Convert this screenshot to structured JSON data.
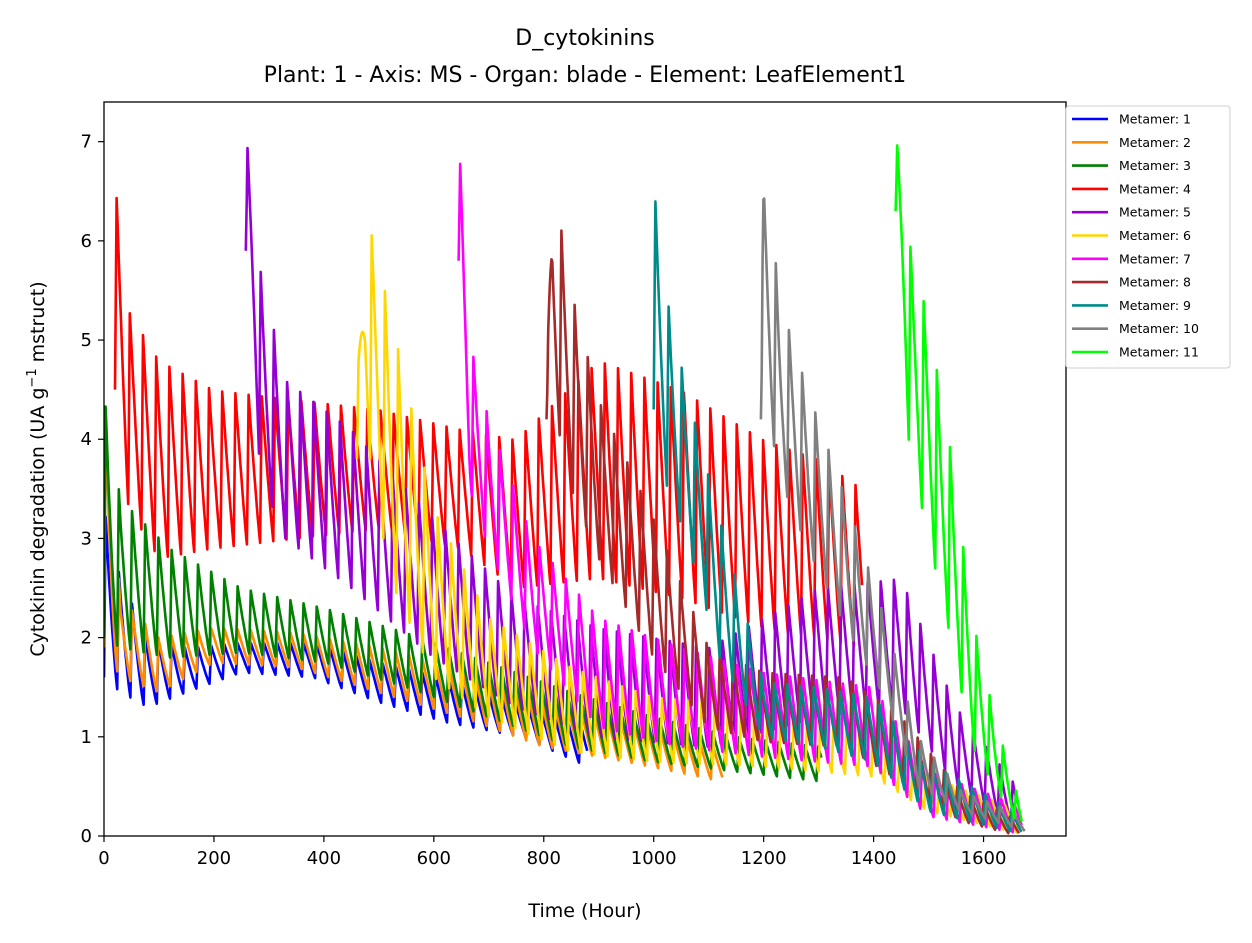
{
  "chart_data": {
    "type": "line",
    "title": "D_cytokinins",
    "subtitle": "Plant: 1 - Axis: MS - Organ: blade - Element: LeafElement1",
    "xlabel": "Time (Hour)",
    "ylabel_prefix": "Cytokinin degradation (UA g",
    "ylabel_superscript": "−1",
    "ylabel_suffix": " mstruct)",
    "xlim": [
      0,
      1750
    ],
    "ylim": [
      0,
      7.4
    ],
    "x_ticks": [
      0,
      200,
      400,
      600,
      800,
      1000,
      1200,
      1400,
      1600
    ],
    "y_ticks": [
      0,
      1,
      2,
      3,
      4,
      5,
      6,
      7
    ],
    "grid": false,
    "legend_position": "outside-top-right",
    "series": [
      {
        "name": "Metamer: 1",
        "color": "#0000ff",
        "start": 0,
        "end": 880,
        "envelope": [
          [
            0,
            3.3,
            1.6
          ],
          [
            30,
            2.6,
            1.45
          ],
          [
            80,
            2.0,
            1.3
          ],
          [
            150,
            1.9,
            1.45
          ],
          [
            250,
            1.95,
            1.65
          ],
          [
            380,
            1.95,
            1.6
          ],
          [
            500,
            1.75,
            1.35
          ],
          [
            620,
            1.6,
            1.15
          ],
          [
            760,
            1.35,
            1.0
          ],
          [
            880,
            1.1,
            0.7
          ]
        ]
      },
      {
        "name": "Metamer: 2",
        "color": "#ff8c00",
        "start": 0,
        "end": 1125,
        "envelope": [
          [
            0,
            4.4,
            1.9
          ],
          [
            30,
            2.4,
            1.6
          ],
          [
            100,
            2.0,
            1.45
          ],
          [
            200,
            2.1,
            1.75
          ],
          [
            350,
            2.05,
            1.7
          ],
          [
            500,
            1.9,
            1.45
          ],
          [
            650,
            1.7,
            1.2
          ],
          [
            800,
            1.4,
            0.9
          ],
          [
            950,
            1.2,
            0.75
          ],
          [
            1125,
            0.9,
            0.55
          ]
        ]
      },
      {
        "name": "Metamer: 3",
        "color": "#008000",
        "start": 0,
        "end": 1305,
        "envelope": [
          [
            0,
            4.45,
            2.0
          ],
          [
            30,
            3.4,
            1.9
          ],
          [
            120,
            2.9,
            1.8
          ],
          [
            250,
            2.5,
            1.85
          ],
          [
            400,
            2.3,
            1.75
          ],
          [
            550,
            2.05,
            1.5
          ],
          [
            700,
            1.75,
            1.2
          ],
          [
            850,
            1.45,
            0.9
          ],
          [
            1000,
            1.2,
            0.75
          ],
          [
            1150,
            1.0,
            0.65
          ],
          [
            1305,
            0.9,
            0.55
          ]
        ]
      },
      {
        "name": "Metamer: 4",
        "color": "#ff0000",
        "start": 20,
        "end": 1380,
        "envelope": [
          [
            20,
            6.6,
            4.5
          ],
          [
            45,
            5.3,
            3.3
          ],
          [
            100,
            4.8,
            2.8
          ],
          [
            200,
            4.5,
            2.9
          ],
          [
            350,
            4.4,
            3.0
          ],
          [
            500,
            4.3,
            3.1
          ],
          [
            650,
            4.1,
            2.9
          ],
          [
            750,
            4.0,
            2.5
          ],
          [
            900,
            4.8,
            2.6
          ],
          [
            1050,
            4.5,
            2.4
          ],
          [
            1200,
            4.0,
            2.1
          ],
          [
            1300,
            3.8,
            2.0
          ],
          [
            1380,
            3.5,
            1.9
          ]
        ]
      },
      {
        "name": "Metamer: 5",
        "color": "#9400d3",
        "start": 258,
        "end": 1660,
        "envelope": [
          [
            258,
            7.1,
            5.9
          ],
          [
            285,
            5.7,
            3.6
          ],
          [
            330,
            4.6,
            3.0
          ],
          [
            450,
            4.1,
            2.5
          ],
          [
            600,
            3.2,
            1.8
          ],
          [
            750,
            2.4,
            1.3
          ],
          [
            900,
            2.1,
            1.0
          ],
          [
            1100,
            1.9,
            0.9
          ],
          [
            1300,
            2.5,
            1.2
          ],
          [
            1450,
            2.6,
            1.3
          ],
          [
            1550,
            1.3,
            0.5
          ],
          [
            1660,
            0.5,
            0.1
          ]
        ]
      },
      {
        "name": "Metamer: 6",
        "color": "#ffd700",
        "start": 460,
        "end": 1670,
        "envelope": [
          [
            460,
            4.4,
            3.8
          ],
          [
            475,
            6.35,
            4.1
          ],
          [
            520,
            5.3,
            2.6
          ],
          [
            600,
            3.3,
            1.6
          ],
          [
            700,
            2.2,
            1.2
          ],
          [
            850,
            1.7,
            0.85
          ],
          [
            1000,
            1.4,
            0.75
          ],
          [
            1200,
            1.3,
            0.7
          ],
          [
            1400,
            1.1,
            0.6
          ],
          [
            1500,
            0.6,
            0.25
          ],
          [
            1670,
            0.25,
            0.02
          ]
        ]
      },
      {
        "name": "Metamer: 7",
        "color": "#ff00ff",
        "start": 645,
        "end": 1670,
        "envelope": [
          [
            645,
            7.1,
            5.8
          ],
          [
            665,
            5.0,
            3.5
          ],
          [
            700,
            4.2,
            2.9
          ],
          [
            780,
            3.0,
            1.9
          ],
          [
            900,
            2.2,
            1.1
          ],
          [
            1050,
            1.9,
            0.9
          ],
          [
            1200,
            1.65,
            0.8
          ],
          [
            1400,
            1.5,
            0.7
          ],
          [
            1500,
            0.65,
            0.2
          ],
          [
            1670,
            0.3,
            0.02
          ]
        ]
      },
      {
        "name": "Metamer: 8",
        "color": "#a52a2a",
        "start": 805,
        "end": 1665,
        "envelope": [
          [
            805,
            4.4,
            4.2
          ],
          [
            815,
            6.7,
            4.4
          ],
          [
            850,
            5.5,
            3.5
          ],
          [
            900,
            4.4,
            2.8
          ],
          [
            1000,
            3.2,
            1.8
          ],
          [
            1100,
            1.9,
            1.1
          ],
          [
            1200,
            1.65,
            0.95
          ],
          [
            1350,
            1.6,
            0.9
          ],
          [
            1450,
            1.2,
            0.55
          ],
          [
            1560,
            0.45,
            0.15
          ],
          [
            1665,
            0.15,
            0.0
          ]
        ]
      },
      {
        "name": "Metamer: 9",
        "color": "#008b8b",
        "start": 1000,
        "end": 1670,
        "envelope": [
          [
            1000,
            6.55,
            4.3
          ],
          [
            1025,
            5.4,
            3.5
          ],
          [
            1060,
            4.5,
            3.0
          ],
          [
            1120,
            3.2,
            1.8
          ],
          [
            1200,
            1.55,
            1.0
          ],
          [
            1300,
            1.5,
            0.9
          ],
          [
            1400,
            1.4,
            0.75
          ],
          [
            1500,
            0.75,
            0.25
          ],
          [
            1670,
            0.2,
            0.02
          ]
        ]
      },
      {
        "name": "Metamer: 10",
        "color": "#808080",
        "start": 1195,
        "end": 1675,
        "envelope": [
          [
            1195,
            4.3,
            4.2
          ],
          [
            1200,
            6.85,
            4.5
          ],
          [
            1230,
            5.4,
            3.6
          ],
          [
            1280,
            4.5,
            2.9
          ],
          [
            1350,
            3.4,
            2.1
          ],
          [
            1420,
            2.2,
            1.4
          ],
          [
            1480,
            1.0,
            0.5
          ],
          [
            1560,
            0.45,
            0.25
          ],
          [
            1675,
            0.2,
            0.05
          ]
        ]
      },
      {
        "name": "Metamer: 11",
        "color": "#00ff00",
        "start": 1440,
        "end": 1670,
        "envelope": [
          [
            1440,
            7.1,
            6.3
          ],
          [
            1465,
            6.0,
            3.9
          ],
          [
            1500,
            5.2,
            3.0
          ],
          [
            1540,
            3.9,
            2.0
          ],
          [
            1580,
            2.2,
            0.9
          ],
          [
            1620,
            1.2,
            0.5
          ],
          [
            1670,
            0.25,
            0.05
          ]
        ]
      }
    ]
  }
}
